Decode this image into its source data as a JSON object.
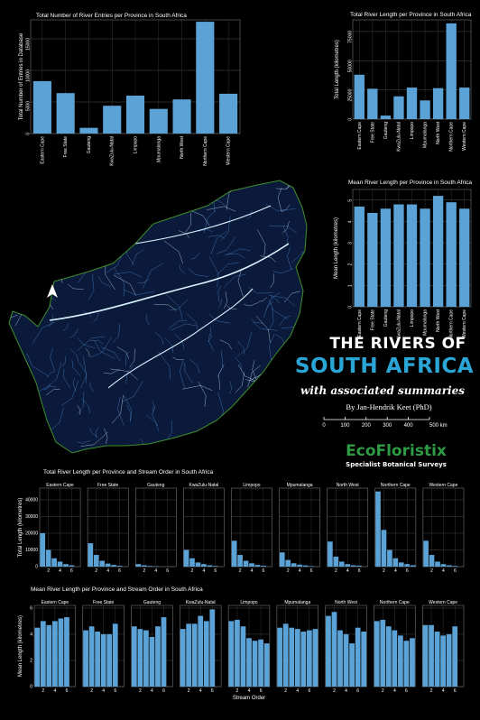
{
  "poster": {
    "title_line1": "THE RIVERS OF",
    "title_line2": "SOUTH AFRICA",
    "subtitle": "with associated summaries",
    "author": "By Jan-Hendrik Keet (PhD)",
    "scale_labels": [
      "0",
      "100",
      "200",
      "300",
      "400",
      "500 km"
    ],
    "logo_text": "EcoFloristix",
    "logo_tagline": "Specialist Botanical Surveys",
    "north_label": "N",
    "colors": {
      "accent": "#2aa6d6",
      "bar": "#5ba3d6",
      "map_bg": "#0b1a3a",
      "map_border": "#3f8f2a",
      "logo_green": "#2e9b45"
    }
  },
  "chart_data": [
    {
      "type": "bar",
      "title": "Total Number of River Entries per Province in South Africa",
      "ylabel": "Total Number of Entries in Database",
      "xlabel": "",
      "categories": [
        "Eastern Cape",
        "Free State",
        "Gauteng",
        "KwaZulu-Natal",
        "Limpopo",
        "Mpumalanga",
        "North West",
        "Northern Cape",
        "Western Cape"
      ],
      "values": [
        8300,
        6400,
        900,
        4400,
        6000,
        3900,
        5400,
        17700,
        6300
      ],
      "ylim": [
        0,
        18000
      ],
      "yticks": [
        0,
        5000,
        10000,
        15000
      ],
      "grid": true
    },
    {
      "type": "bar",
      "title": "Total River Length per Province in South Africa",
      "ylabel": "Total Length (kilometres)",
      "xlabel": "",
      "categories": [
        "Eastern Cape",
        "Free State",
        "Gauteng",
        "KwaZulu-Natal",
        "Limpopo",
        "Mpumalanga",
        "North West",
        "Northern Cape",
        "Western Cape"
      ],
      "values": [
        38000,
        26000,
        3000,
        19500,
        27000,
        16000,
        26500,
        82000,
        27000
      ],
      "ylim": [
        0,
        85000
      ],
      "yticks": [
        0,
        25000,
        50000,
        75000
      ],
      "grid": true
    },
    {
      "type": "bar",
      "title": "Mean River Length per Province in South Africa",
      "ylabel": "Mean Length (kilometres)",
      "xlabel": "",
      "categories": [
        "Eastern Cape",
        "Free State",
        "Gauteng",
        "KwaZulu-Natal",
        "Limpopo",
        "Mpumalanga",
        "North West",
        "Northern Cape",
        "Western Cape"
      ],
      "values": [
        4.7,
        4.4,
        4.6,
        4.8,
        4.8,
        4.6,
        5.2,
        4.9,
        4.6
      ],
      "ylim": [
        0,
        5.5
      ],
      "yticks": [
        0,
        1,
        2,
        3,
        4,
        5
      ],
      "grid": true
    },
    {
      "type": "bar",
      "title": "Total River Length per Province and Stream Order in South Africa",
      "ylabel": "Total Length (kilometres)",
      "xlabel": "",
      "panels": [
        "Eastern Cape",
        "Free State",
        "Gauteng",
        "KwaZulu-Natal",
        "Limpopo",
        "Mpumalanga",
        "North West",
        "Northern Cape",
        "Western Cape"
      ],
      "x": [
        1,
        2,
        3,
        4,
        5,
        6,
        7
      ],
      "series": [
        {
          "name": "Eastern Cape",
          "values": [
            20000,
            10000,
            5000,
            3000,
            1500,
            800,
            0
          ]
        },
        {
          "name": "Free State",
          "values": [
            14000,
            7000,
            3500,
            1800,
            1000,
            500,
            0
          ]
        },
        {
          "name": "Gauteng",
          "values": [
            1500,
            800,
            400,
            200,
            0,
            0,
            0
          ]
        },
        {
          "name": "KwaZulu-Natal",
          "values": [
            10000,
            5000,
            2500,
            1500,
            800,
            400,
            0
          ]
        },
        {
          "name": "Limpopo",
          "values": [
            15500,
            7000,
            3500,
            2000,
            1000,
            500,
            0
          ]
        },
        {
          "name": "Mpumalanga",
          "values": [
            8500,
            4000,
            2000,
            1200,
            700,
            300,
            0
          ]
        },
        {
          "name": "North West",
          "values": [
            15000,
            6000,
            3000,
            1500,
            800,
            600,
            0
          ]
        },
        {
          "name": "Northern Cape",
          "values": [
            45000,
            22000,
            10000,
            5000,
            2500,
            1500,
            800
          ]
        },
        {
          "name": "Western Cape",
          "values": [
            15500,
            7000,
            3000,
            1500,
            800,
            400,
            0
          ]
        }
      ],
      "ylim": [
        0,
        47000
      ],
      "yticks": [
        0,
        10000,
        20000,
        30000,
        40000
      ],
      "xticks": [
        2,
        4,
        6
      ],
      "grid": true
    },
    {
      "type": "bar",
      "title": "Mean River Length per Province and Stream Order in South Africa",
      "ylabel": "Mean Length (kilometres)",
      "xlabel": "Stream Order",
      "panels": [
        "Eastern Cape",
        "Free State",
        "Gauteng",
        "KwaZulu-Natal",
        "Limpopo",
        "Mpumalanga",
        "North West",
        "Northern Cape",
        "Western Cape"
      ],
      "x": [
        1,
        2,
        3,
        4,
        5,
        6,
        7
      ],
      "series": [
        {
          "name": "Eastern Cape",
          "values": [
            4.5,
            5.0,
            4.7,
            5.0,
            5.2,
            5.3,
            0
          ]
        },
        {
          "name": "Free State",
          "values": [
            4.3,
            4.6,
            4.2,
            4.0,
            4.0,
            4.8,
            0
          ]
        },
        {
          "name": "Gauteng",
          "values": [
            4.6,
            4.4,
            4.3,
            3.8,
            4.6,
            5.3,
            0
          ]
        },
        {
          "name": "KwaZulu-Natal",
          "values": [
            4.4,
            4.8,
            4.8,
            5.4,
            5.0,
            5.9,
            0
          ]
        },
        {
          "name": "Limpopo",
          "values": [
            5.0,
            5.1,
            4.6,
            3.7,
            3.5,
            3.6,
            3.3
          ]
        },
        {
          "name": "Mpumalanga",
          "values": [
            4.5,
            4.8,
            4.5,
            4.4,
            4.2,
            4.3,
            4.4
          ]
        },
        {
          "name": "North West",
          "values": [
            5.4,
            5.7,
            4.3,
            4.0,
            3.3,
            4.5,
            4.2
          ]
        },
        {
          "name": "Northern Cape",
          "values": [
            5.0,
            5.1,
            4.6,
            4.3,
            3.9,
            3.5,
            3.7
          ]
        },
        {
          "name": "Western Cape",
          "values": [
            4.7,
            4.7,
            4.2,
            3.9,
            4.0,
            4.6,
            0
          ]
        }
      ],
      "ylim": [
        0,
        6.2
      ],
      "yticks": [
        0,
        2,
        4,
        6
      ],
      "xticks": [
        2,
        4,
        6
      ],
      "grid": true
    }
  ]
}
